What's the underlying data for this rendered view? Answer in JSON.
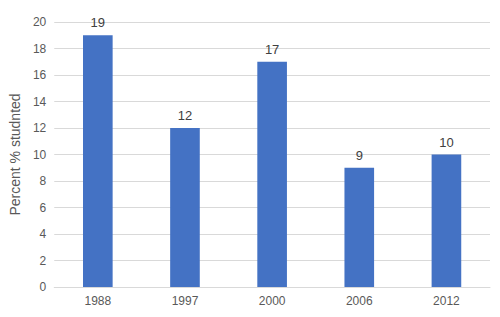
{
  "chart_data": {
    "type": "bar",
    "y_label": "Percent % studnted",
    "categories": [
      "1988",
      "1997",
      "2000",
      "2006",
      "2012"
    ],
    "values": [
      19,
      12,
      17,
      9,
      10
    ],
    "color": "#4472c4",
    "ylim": [
      0,
      20
    ],
    "yticks": [
      0,
      2,
      4,
      6,
      8,
      10,
      12,
      14,
      16,
      18,
      20
    ],
    "grid": true,
    "data_labels": true
  }
}
